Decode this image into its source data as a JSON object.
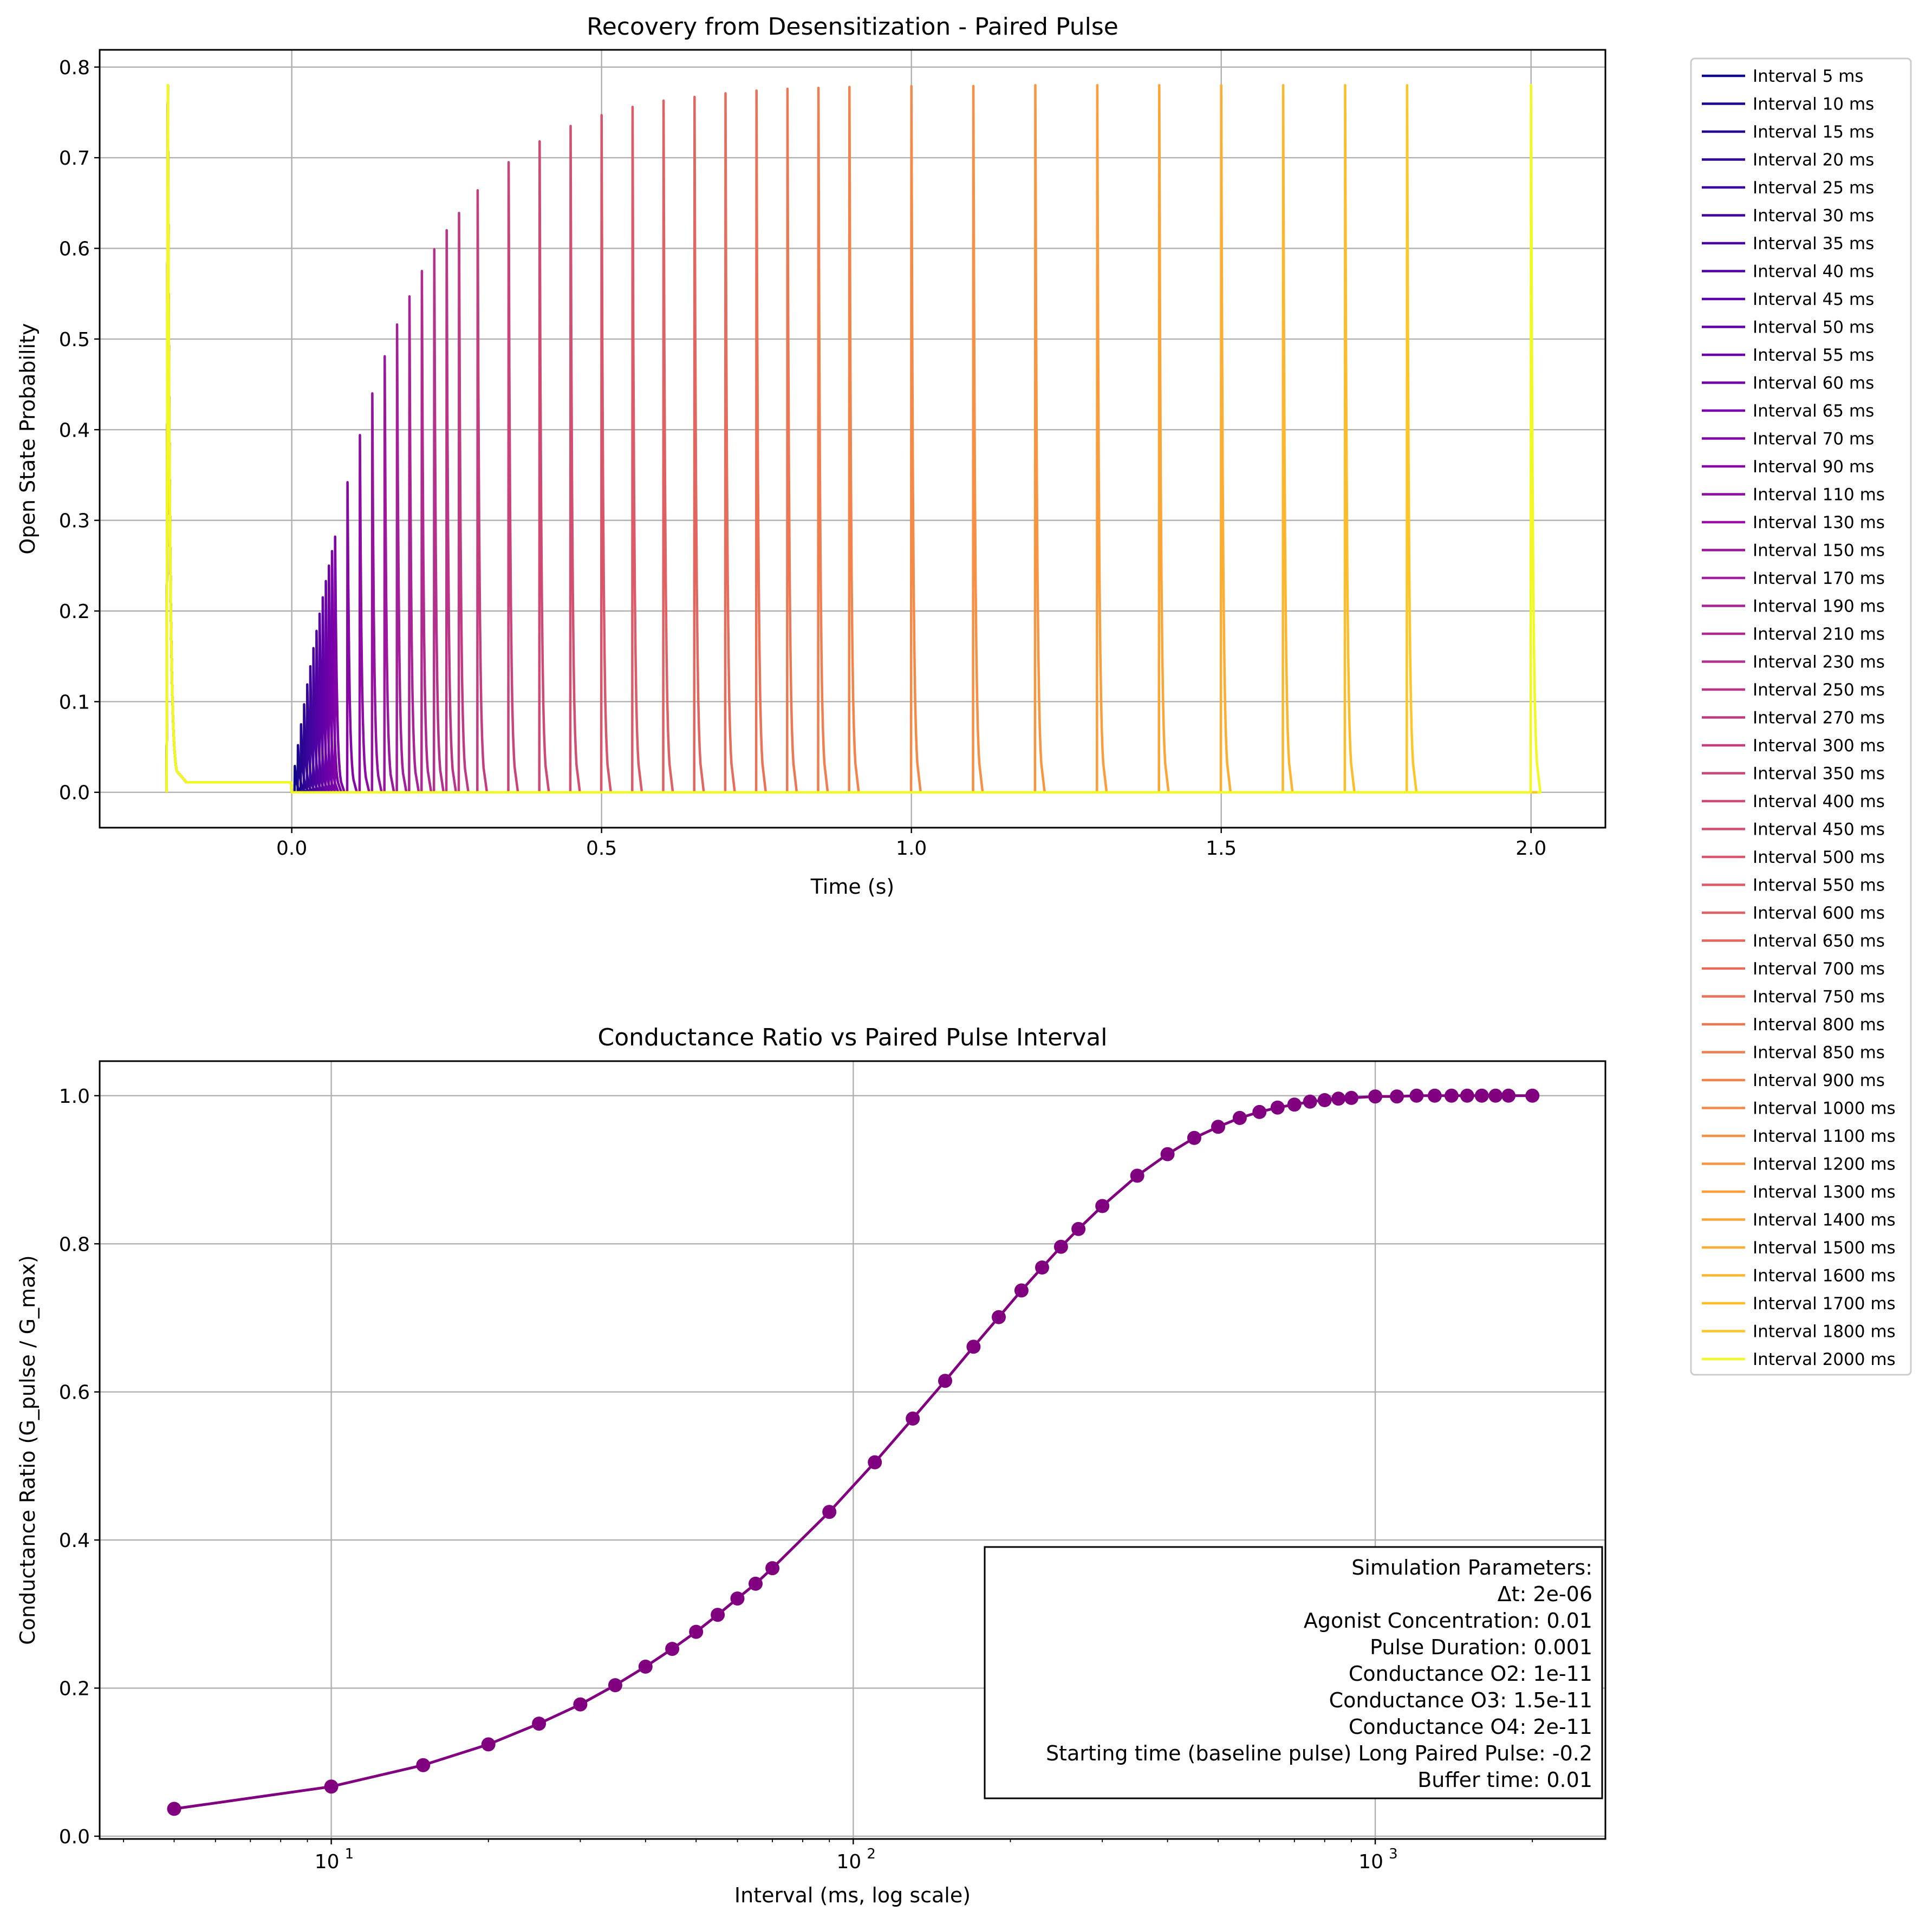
{
  "chart_data": [
    {
      "type": "line",
      "title": "Recovery from Desensitization - Paired Pulse",
      "xlabel": "Time (s)",
      "ylabel": "Open State Probability",
      "xlim": [
        -0.31,
        2.12
      ],
      "ylim": [
        -0.039,
        0.819
      ],
      "xticks": [
        0.0,
        0.5,
        1.0,
        1.5,
        2.0
      ],
      "xtick_labels": [
        "0.0",
        "0.5",
        "1.0",
        "1.5",
        "2.0"
      ],
      "yticks": [
        0.0,
        0.1,
        0.2,
        0.3,
        0.4,
        0.5,
        0.6,
        0.7,
        0.8
      ],
      "ytick_labels": [
        "0.0",
        "0.1",
        "0.2",
        "0.3",
        "0.4",
        "0.5",
        "0.6",
        "0.7",
        "0.8"
      ],
      "grid": true,
      "legend_position": "outside-right",
      "colormap": "plasma",
      "baseline_pulse": {
        "time": -0.2,
        "peak": 0.78,
        "plateau": 0.011,
        "buffer_time": 0.01
      },
      "series": [
        {
          "name": "Interval 5 ms",
          "interval_ms": 5,
          "second_peak": 0.029,
          "color": "#0d0887"
        },
        {
          "name": "Interval 10 ms",
          "interval_ms": 10,
          "second_peak": 0.052,
          "color": "#1b068d"
        },
        {
          "name": "Interval 15 ms",
          "interval_ms": 15,
          "second_peak": 0.075,
          "color": "#260591"
        },
        {
          "name": "Interval 20 ms",
          "interval_ms": 20,
          "second_peak": 0.097,
          "color": "#2f0596"
        },
        {
          "name": "Interval 25 ms",
          "interval_ms": 25,
          "second_peak": 0.119,
          "color": "#38049a"
        },
        {
          "name": "Interval 30 ms",
          "interval_ms": 30,
          "second_peak": 0.139,
          "color": "#41049d"
        },
        {
          "name": "Interval 35 ms",
          "interval_ms": 35,
          "second_peak": 0.159,
          "color": "#4903a0"
        },
        {
          "name": "Interval 40 ms",
          "interval_ms": 40,
          "second_peak": 0.178,
          "color": "#5102a3"
        },
        {
          "name": "Interval 45 ms",
          "interval_ms": 45,
          "second_peak": 0.197,
          "color": "#5901a5"
        },
        {
          "name": "Interval 50 ms",
          "interval_ms": 50,
          "second_peak": 0.215,
          "color": "#6100a7"
        },
        {
          "name": "Interval 55 ms",
          "interval_ms": 55,
          "second_peak": 0.233,
          "color": "#6900a8"
        },
        {
          "name": "Interval 60 ms",
          "interval_ms": 60,
          "second_peak": 0.25,
          "color": "#7100a8"
        },
        {
          "name": "Interval 65 ms",
          "interval_ms": 65,
          "second_peak": 0.266,
          "color": "#7801a8"
        },
        {
          "name": "Interval 70 ms",
          "interval_ms": 70,
          "second_peak": 0.282,
          "color": "#8004a8"
        },
        {
          "name": "Interval 90 ms",
          "interval_ms": 90,
          "second_peak": 0.342,
          "color": "#8707a6"
        },
        {
          "name": "Interval 110 ms",
          "interval_ms": 110,
          "second_peak": 0.394,
          "color": "#8e0ca4"
        },
        {
          "name": "Interval 130 ms",
          "interval_ms": 130,
          "second_peak": 0.44,
          "color": "#9511a1"
        },
        {
          "name": "Interval 150 ms",
          "interval_ms": 150,
          "second_peak": 0.481,
          "color": "#9c179e"
        },
        {
          "name": "Interval 170 ms",
          "interval_ms": 170,
          "second_peak": 0.516,
          "color": "#a31e9a"
        },
        {
          "name": "Interval 190 ms",
          "interval_ms": 190,
          "second_peak": 0.547,
          "color": "#a92395"
        },
        {
          "name": "Interval 210 ms",
          "interval_ms": 210,
          "second_peak": 0.575,
          "color": "#af2991"
        },
        {
          "name": "Interval 230 ms",
          "interval_ms": 230,
          "second_peak": 0.599,
          "color": "#b5308c"
        },
        {
          "name": "Interval 250 ms",
          "interval_ms": 250,
          "second_peak": 0.62,
          "color": "#ba3487"
        },
        {
          "name": "Interval 270 ms",
          "interval_ms": 270,
          "second_peak": 0.639,
          "color": "#bf3984"
        },
        {
          "name": "Interval 300 ms",
          "interval_ms": 300,
          "second_peak": 0.664,
          "color": "#c43e7f"
        },
        {
          "name": "Interval 350 ms",
          "interval_ms": 350,
          "second_peak": 0.695,
          "color": "#c9447a"
        },
        {
          "name": "Interval 400 ms",
          "interval_ms": 400,
          "second_peak": 0.718,
          "color": "#ce4a75"
        },
        {
          "name": "Interval 450 ms",
          "interval_ms": 450,
          "second_peak": 0.735,
          "color": "#d24f71"
        },
        {
          "name": "Interval 500 ms",
          "interval_ms": 500,
          "second_peak": 0.747,
          "color": "#d7566c"
        },
        {
          "name": "Interval 550 ms",
          "interval_ms": 550,
          "second_peak": 0.756,
          "color": "#db5c68"
        },
        {
          "name": "Interval 600 ms",
          "interval_ms": 600,
          "second_peak": 0.763,
          "color": "#de6164"
        },
        {
          "name": "Interval 650 ms",
          "interval_ms": 650,
          "second_peak": 0.767,
          "color": "#e26660"
        },
        {
          "name": "Interval 700 ms",
          "interval_ms": 700,
          "second_peak": 0.771,
          "color": "#e66c5c"
        },
        {
          "name": "Interval 750 ms",
          "interval_ms": 750,
          "second_peak": 0.774,
          "color": "#e97257"
        },
        {
          "name": "Interval 800 ms",
          "interval_ms": 800,
          "second_peak": 0.776,
          "color": "#ec7853"
        },
        {
          "name": "Interval 850 ms",
          "interval_ms": 850,
          "second_peak": 0.777,
          "color": "#ef7e50"
        },
        {
          "name": "Interval 900 ms",
          "interval_ms": 900,
          "second_peak": 0.778,
          "color": "#f2844b"
        },
        {
          "name": "Interval 1000 ms",
          "interval_ms": 1000,
          "second_peak": 0.779,
          "color": "#f48a47"
        },
        {
          "name": "Interval 1100 ms",
          "interval_ms": 1100,
          "second_peak": 0.779,
          "color": "#f69044"
        },
        {
          "name": "Interval 1200 ms",
          "interval_ms": 1200,
          "second_peak": 0.78,
          "color": "#f89540"
        },
        {
          "name": "Interval 1300 ms",
          "interval_ms": 1300,
          "second_peak": 0.78,
          "color": "#fa9d3a"
        },
        {
          "name": "Interval 1400 ms",
          "interval_ms": 1400,
          "second_peak": 0.78,
          "color": "#fca537"
        },
        {
          "name": "Interval 1500 ms",
          "interval_ms": 1500,
          "second_peak": 0.78,
          "color": "#fdad32"
        },
        {
          "name": "Interval 1600 ms",
          "interval_ms": 1600,
          "second_peak": 0.78,
          "color": "#fdb52e"
        },
        {
          "name": "Interval 1700 ms",
          "interval_ms": 1700,
          "second_peak": 0.78,
          "color": "#fdbd2b"
        },
        {
          "name": "Interval 1800 ms",
          "interval_ms": 1800,
          "second_peak": 0.78,
          "color": "#fcc626"
        },
        {
          "name": "Interval 2000 ms",
          "interval_ms": 2000,
          "second_peak": 0.78,
          "color": "#f0f921"
        }
      ]
    },
    {
      "type": "line",
      "title": "Conductance Ratio vs Paired Pulse Interval",
      "xlabel": "Interval (ms, log scale)",
      "ylabel": "Conductance Ratio (G_pulse / G_max)",
      "x_scale": "log",
      "xlim": [
        3.6,
        2760
      ],
      "ylim": [
        -0.0037,
        1.0467
      ],
      "xticks": [
        10,
        100,
        1000
      ],
      "xtick_labels": [
        {
          "base": "10",
          "exp": "1"
        },
        {
          "base": "10",
          "exp": "2"
        },
        {
          "base": "10",
          "exp": "3"
        }
      ],
      "yticks": [
        0.0,
        0.2,
        0.4,
        0.6,
        0.8,
        1.0
      ],
      "ytick_labels": [
        "0.0",
        "0.2",
        "0.4",
        "0.6",
        "0.8",
        "1.0"
      ],
      "grid": true,
      "marker": "circle",
      "line_color": "#800080",
      "x": [
        5,
        10,
        15,
        20,
        25,
        30,
        35,
        40,
        45,
        50,
        55,
        60,
        65,
        70,
        90,
        110,
        130,
        150,
        170,
        190,
        210,
        230,
        250,
        270,
        300,
        350,
        400,
        450,
        500,
        550,
        600,
        650,
        700,
        750,
        800,
        850,
        900,
        1000,
        1100,
        1200,
        1300,
        1400,
        1500,
        1600,
        1700,
        1800,
        2000
      ],
      "y": [
        0.037,
        0.067,
        0.096,
        0.124,
        0.152,
        0.178,
        0.204,
        0.229,
        0.253,
        0.276,
        0.299,
        0.321,
        0.341,
        0.362,
        0.438,
        0.505,
        0.564,
        0.615,
        0.661,
        0.701,
        0.737,
        0.768,
        0.796,
        0.82,
        0.851,
        0.892,
        0.921,
        0.943,
        0.958,
        0.97,
        0.978,
        0.984,
        0.988,
        0.992,
        0.994,
        0.996,
        0.997,
        0.999,
        0.999,
        1.0,
        1.0,
        1.0,
        1.0,
        1.0,
        1.0,
        1.0,
        1.0
      ],
      "annotation": [
        "Simulation Parameters:",
        "Δt: 2e-06",
        "Agonist Concentration: 0.01",
        "Pulse Duration: 0.001",
        "Conductance O2: 1e-11",
        "Conductance O3: 1.5e-11",
        "Conductance O4: 2e-11",
        "Starting time (baseline pulse) Long Paired Pulse: -0.2",
        "Buffer time: 0.01"
      ]
    }
  ]
}
